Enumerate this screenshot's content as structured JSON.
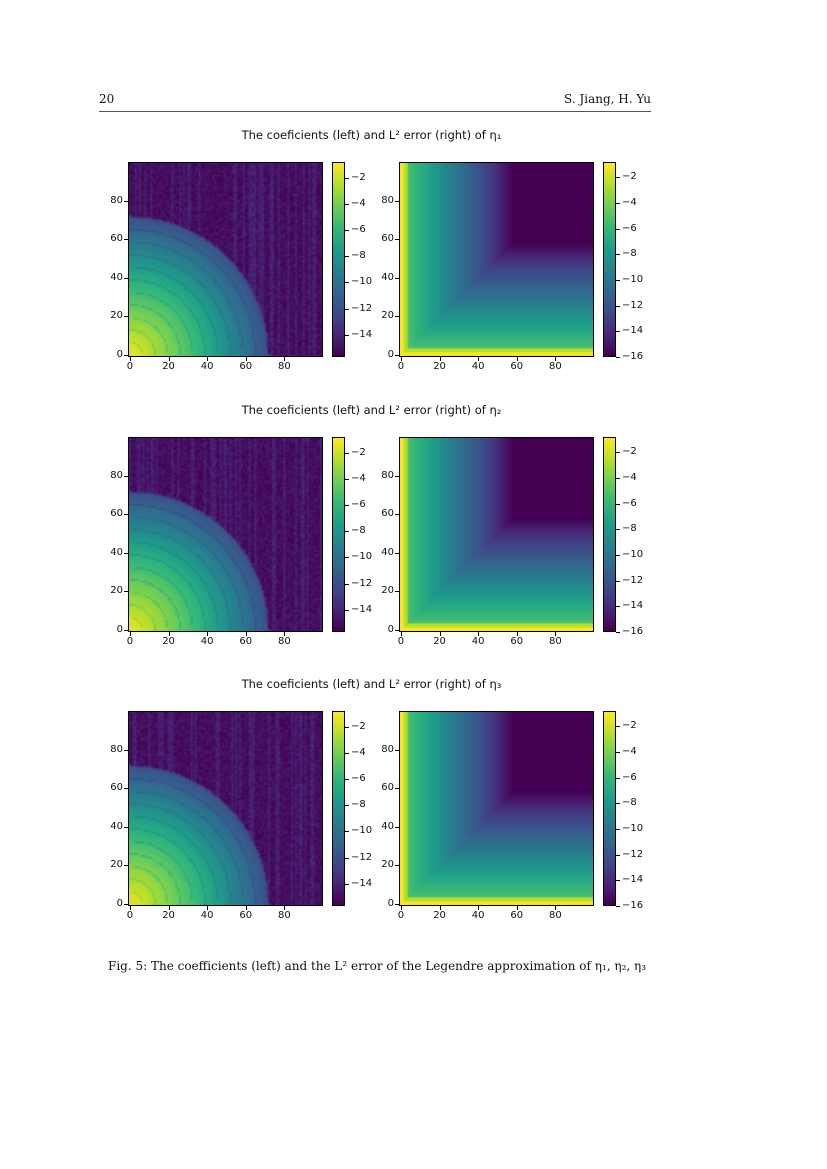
{
  "header": {
    "page_number": "20",
    "authors": "S. Jiang, H. Yu"
  },
  "figures": [
    {
      "title": "The coeficients (left) and L² error (right) of η₁"
    },
    {
      "title": "The coeficients (left) and L² error (right) of η₂"
    },
    {
      "title": "The coeficients (left) and L² error (right) of η₃"
    }
  ],
  "caption": "Fig. 5: The coefficients (left) and the L² error of the Legendre approximation of η₁, η₂, η₃",
  "chart_data": [
    {
      "type": "heatmap",
      "figure": "η₁",
      "panel": "coefficients",
      "colormap": "viridis",
      "xlim": [
        0,
        99
      ],
      "ylim": [
        0,
        99
      ],
      "xticks": [
        "0",
        "20",
        "40",
        "60",
        "80"
      ],
      "yticks": [
        "0",
        "20",
        "40",
        "60",
        "80"
      ],
      "colorbar_range": [
        -15.7,
        -0.8
      ],
      "colorbar_ticks": [
        "−2",
        "−4",
        "−6",
        "−8",
        "−10",
        "−12",
        "−14"
      ]
    },
    {
      "type": "heatmap",
      "figure": "η₁",
      "panel": "L2 error",
      "colormap": "viridis",
      "xlim": [
        0,
        99
      ],
      "ylim": [
        0,
        99
      ],
      "xticks": [
        "0",
        "20",
        "40",
        "60",
        "80"
      ],
      "yticks": [
        "0",
        "20",
        "40",
        "60",
        "80"
      ],
      "colorbar_range": [
        -16,
        -0.8
      ],
      "colorbar_ticks": [
        "−2",
        "−4",
        "−6",
        "−8",
        "−10",
        "−12",
        "−14",
        "−16"
      ]
    },
    {
      "type": "heatmap",
      "figure": "η₂",
      "panel": "coefficients",
      "colormap": "viridis",
      "xlim": [
        0,
        99
      ],
      "ylim": [
        0,
        99
      ],
      "xticks": [
        "0",
        "20",
        "40",
        "60",
        "80"
      ],
      "yticks": [
        "0",
        "20",
        "40",
        "60",
        "80"
      ],
      "colorbar_range": [
        -15.7,
        -0.8
      ],
      "colorbar_ticks": [
        "−2",
        "−4",
        "−6",
        "−8",
        "−10",
        "−12",
        "−14"
      ]
    },
    {
      "type": "heatmap",
      "figure": "η₂",
      "panel": "L2 error",
      "colormap": "viridis",
      "xlim": [
        0,
        99
      ],
      "ylim": [
        0,
        99
      ],
      "xticks": [
        "0",
        "20",
        "40",
        "60",
        "80"
      ],
      "yticks": [
        "0",
        "20",
        "40",
        "60",
        "80"
      ],
      "colorbar_range": [
        -16,
        -0.8
      ],
      "colorbar_ticks": [
        "−2",
        "−4",
        "−6",
        "−8",
        "−10",
        "−12",
        "−14",
        "−16"
      ]
    },
    {
      "type": "heatmap",
      "figure": "η₃",
      "panel": "coefficients",
      "colormap": "viridis",
      "xlim": [
        0,
        99
      ],
      "ylim": [
        0,
        99
      ],
      "xticks": [
        "0",
        "20",
        "40",
        "60",
        "80"
      ],
      "yticks": [
        "0",
        "20",
        "40",
        "60",
        "80"
      ],
      "colorbar_range": [
        -15.7,
        -0.8
      ],
      "colorbar_ticks": [
        "−2",
        "−4",
        "−6",
        "−8",
        "−10",
        "−12",
        "−14"
      ]
    },
    {
      "type": "heatmap",
      "figure": "η₃",
      "panel": "L2 error",
      "colormap": "viridis",
      "xlim": [
        0,
        99
      ],
      "ylim": [
        0,
        99
      ],
      "xticks": [
        "0",
        "20",
        "40",
        "60",
        "80"
      ],
      "yticks": [
        "0",
        "20",
        "40",
        "60",
        "80"
      ],
      "colorbar_range": [
        -16,
        -0.8
      ],
      "colorbar_ticks": [
        "−2",
        "−4",
        "−6",
        "−8",
        "−10",
        "−12",
        "−14",
        "−16"
      ]
    }
  ]
}
